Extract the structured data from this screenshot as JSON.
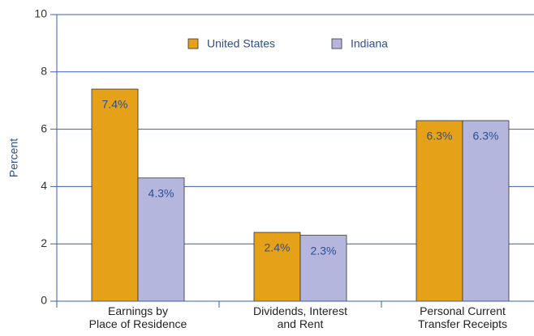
{
  "chart_data": {
    "type": "bar",
    "y_label": "Percent",
    "categories": [
      "Earnings by\nPlace of Residence",
      "Dividends, Interest\nand Rent",
      "Personal Current\nTransfer Receipts"
    ],
    "series": [
      {
        "name": "United States",
        "color": "#e5a118",
        "values": [
          7.4,
          2.4,
          6.3
        ],
        "value_labels": [
          "7.4%",
          "2.4%",
          "6.3%"
        ]
      },
      {
        "name": "Indiana",
        "color": "#b4b6de",
        "values": [
          4.3,
          2.3,
          6.3
        ],
        "value_labels": [
          "4.3%",
          "2.3%",
          "6.3%"
        ]
      }
    ],
    "ylim": [
      0,
      10
    ],
    "yticks": [
      0,
      2,
      4,
      6,
      8,
      10
    ],
    "grid": true,
    "legend": "top"
  }
}
